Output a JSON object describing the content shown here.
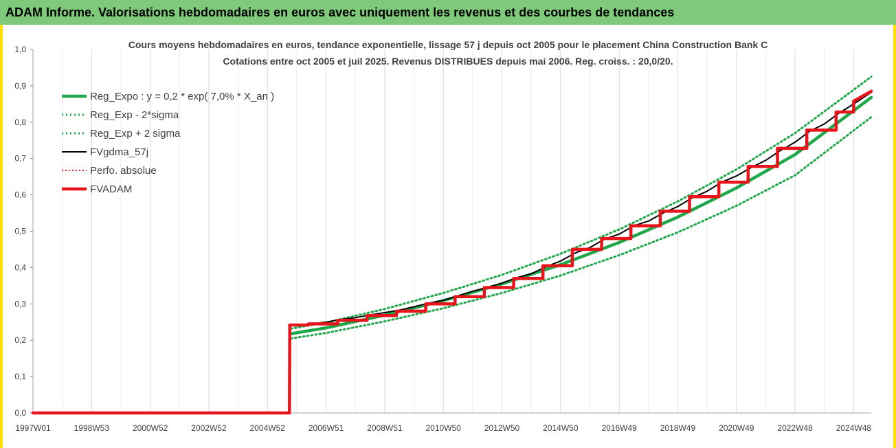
{
  "header": {
    "title": "ADAM Informe. Valorisations hebdomadaires en euros avec uniquement les revenus et des courbes de tendances"
  },
  "colors": {
    "header_bg": "#7fc97a",
    "reg_expo": "#1ea84a",
    "fvgdma": "#000000",
    "fvadam": "#e8141b",
    "perfo": "#e8141b",
    "grid": "#d9d9d9",
    "edge_yellow": "#ffe000"
  },
  "chart_data": {
    "type": "line",
    "title_line1": "Cours moyens hebdomadaires en euros, tendance exponentielle, lissage 57 j depuis oct 2005 pour le placement China Construction Bank C",
    "title_line2": "Cotations entre oct 2005 et juil 2025. Revenus DISTRIBUES depuis mai 2006. Reg. croiss. : 20,0/20.",
    "xlabel": "",
    "ylabel": "",
    "x_range": [
      1997.0,
      2025.6
    ],
    "ylim": [
      0,
      1.0
    ],
    "y_ticks": [
      "0,0",
      "0,1",
      "0,2",
      "0,3",
      "0,4",
      "0,5",
      "0,6",
      "0,7",
      "0,8",
      "0,9",
      "1,0"
    ],
    "x_tick_labels": [
      {
        "label": "1997W01",
        "x": 1997.0
      },
      {
        "label": "1998W53",
        "x": 1999.0
      },
      {
        "label": "2000W52",
        "x": 2001.0
      },
      {
        "label": "2002W52",
        "x": 2003.0
      },
      {
        "label": "2004W52",
        "x": 2005.0
      },
      {
        "label": "2006W51",
        "x": 2007.0
      },
      {
        "label": "2008W51",
        "x": 2009.0
      },
      {
        "label": "2010W50",
        "x": 2011.0
      },
      {
        "label": "2012W50",
        "x": 2013.0
      },
      {
        "label": "2014W50",
        "x": 2015.0
      },
      {
        "label": "2016W49",
        "x": 2017.0
      },
      {
        "label": "2018W49",
        "x": 2019.0
      },
      {
        "label": "2020W49",
        "x": 2021.0
      },
      {
        "label": "2022W48",
        "x": 2023.0
      },
      {
        "label": "2024W48",
        "x": 2025.0
      }
    ],
    "grid": "vertical",
    "legend_position": "top-left",
    "series": [
      {
        "name": "Reg_Expo : y = 0,2 * exp( 7,0% *  X_an )",
        "style": "solid-green",
        "x": [
          2005.8,
          2007,
          2009,
          2011,
          2013,
          2015,
          2017,
          2019,
          2021,
          2023,
          2025.6
        ],
        "y": [
          0.218,
          0.234,
          0.269,
          0.309,
          0.355,
          0.408,
          0.469,
          0.539,
          0.619,
          0.711,
          0.868
        ]
      },
      {
        "name": "Reg_Exp - 2*sigma",
        "style": "dotted-green",
        "x": [
          2005.8,
          2007,
          2009,
          2011,
          2013,
          2015,
          2017,
          2019,
          2021,
          2023,
          2025.6
        ],
        "y": [
          0.205,
          0.22,
          0.252,
          0.288,
          0.33,
          0.378,
          0.434,
          0.497,
          0.57,
          0.654,
          0.814
        ]
      },
      {
        "name": "Reg_Exp + 2 sigma",
        "style": "dotted-green",
        "x": [
          2005.8,
          2007,
          2009,
          2011,
          2013,
          2015,
          2017,
          2019,
          2021,
          2023,
          2025.6
        ],
        "y": [
          0.232,
          0.249,
          0.286,
          0.33,
          0.38,
          0.438,
          0.505,
          0.582,
          0.67,
          0.77,
          0.925
        ]
      },
      {
        "name": "FVgdma_57j",
        "style": "solid-black",
        "x": [
          1997.0,
          2005.75,
          2005.76,
          2006.5,
          2007.0,
          2007.5,
          2008.0,
          2008.5,
          2009.0,
          2009.5,
          2010.0,
          2010.5,
          2011.0,
          2011.5,
          2012.0,
          2012.5,
          2013.0,
          2013.5,
          2014.0,
          2014.5,
          2015.0,
          2015.5,
          2016.0,
          2016.5,
          2017.0,
          2017.5,
          2018.0,
          2018.5,
          2019.0,
          2019.5,
          2020.0,
          2020.5,
          2021.0,
          2021.5,
          2022.0,
          2022.5,
          2023.0,
          2023.5,
          2024.0,
          2024.5,
          2025.0,
          2025.6
        ],
        "y": [
          0.0,
          0.0,
          0.24,
          0.245,
          0.25,
          0.257,
          0.262,
          0.27,
          0.276,
          0.283,
          0.292,
          0.302,
          0.31,
          0.322,
          0.335,
          0.345,
          0.357,
          0.372,
          0.383,
          0.402,
          0.418,
          0.44,
          0.455,
          0.478,
          0.492,
          0.515,
          0.528,
          0.55,
          0.568,
          0.592,
          0.61,
          0.635,
          0.652,
          0.675,
          0.695,
          0.722,
          0.745,
          0.775,
          0.795,
          0.825,
          0.85,
          0.882
        ]
      },
      {
        "name": "Perfo. absolue",
        "style": "dotted-red",
        "x": [
          1997.0,
          2005.75,
          2005.76,
          2025.6
        ],
        "y": [
          0.0,
          0.0,
          0.24,
          0.88
        ]
      },
      {
        "name": "FVADAM",
        "style": "solid-red-thick",
        "x": [
          1997.0,
          2005.75,
          2005.76,
          2006.4,
          2006.4,
          2007.4,
          2007.4,
          2008.4,
          2008.4,
          2009.4,
          2009.4,
          2010.4,
          2010.4,
          2011.4,
          2011.4,
          2012.4,
          2012.4,
          2013.4,
          2013.4,
          2014.4,
          2014.4,
          2015.4,
          2015.4,
          2016.4,
          2016.4,
          2017.4,
          2017.4,
          2018.4,
          2018.4,
          2019.4,
          2019.4,
          2020.4,
          2020.4,
          2021.4,
          2021.4,
          2022.4,
          2022.4,
          2023.4,
          2023.4,
          2024.4,
          2024.4,
          2025.0,
          2025.0,
          2025.6
        ],
        "y": [
          0.0,
          0.0,
          0.242,
          0.242,
          0.245,
          0.245,
          0.255,
          0.255,
          0.268,
          0.268,
          0.28,
          0.28,
          0.3,
          0.3,
          0.32,
          0.32,
          0.345,
          0.345,
          0.37,
          0.37,
          0.405,
          0.405,
          0.45,
          0.45,
          0.48,
          0.48,
          0.515,
          0.515,
          0.555,
          0.555,
          0.595,
          0.595,
          0.635,
          0.635,
          0.678,
          0.678,
          0.728,
          0.728,
          0.778,
          0.778,
          0.828,
          0.828,
          0.858,
          0.885
        ]
      }
    ]
  }
}
